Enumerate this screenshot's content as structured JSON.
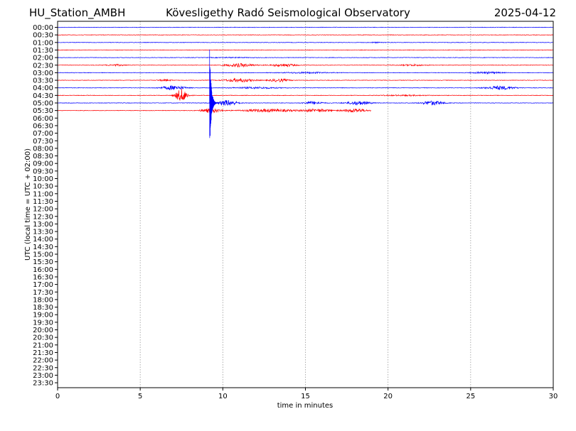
{
  "header": {
    "station": "HU_Station_AMBH",
    "observatory": "Kövesligethy Radó Seismological Observatory",
    "date": "2025-04-12"
  },
  "chart_data": {
    "type": "line",
    "title": "Kövesligethy Radó Seismological Observatory",
    "xlabel": "time in minutes",
    "ylabel": "UTC (local time = UTC + 02:00)",
    "xlim": [
      0,
      30
    ],
    "xticks": [
      "0",
      "5",
      "10",
      "15",
      "20",
      "25",
      "30"
    ],
    "yticks": [
      "00:00",
      "00:30",
      "01:00",
      "01:30",
      "02:00",
      "02:30",
      "03:00",
      "03:30",
      "04:00",
      "04:30",
      "05:00",
      "05:30",
      "06:00",
      "06:30",
      "07:00",
      "07:30",
      "08:00",
      "08:30",
      "09:00",
      "09:30",
      "10:00",
      "10:30",
      "11:00",
      "11:30",
      "12:00",
      "12:30",
      "13:00",
      "13:30",
      "14:00",
      "14:30",
      "15:00",
      "15:30",
      "16:00",
      "16:30",
      "17:00",
      "17:30",
      "18:00",
      "18:30",
      "19:00",
      "19:30",
      "20:00",
      "20:30",
      "21:00",
      "21:30",
      "22:00",
      "22:30",
      "23:00",
      "23:30"
    ],
    "grid": "vertical dotted",
    "colors": {
      "even_rows": "#0000ff",
      "odd_rows": "#ff0000"
    },
    "traces": [
      {
        "row": 0,
        "end": 30,
        "bursts": []
      },
      {
        "row": 1,
        "end": 30,
        "bursts": []
      },
      {
        "row": 2,
        "end": 30,
        "bursts": [
          [
            19.2,
            0.4,
            0.6
          ]
        ]
      },
      {
        "row": 3,
        "end": 30,
        "bursts": []
      },
      {
        "row": 4,
        "end": 30,
        "bursts": [
          [
            10.5,
            1.5,
            0.4
          ]
        ]
      },
      {
        "row": 5,
        "end": 30,
        "bursts": [
          [
            3.5,
            0.8,
            1
          ],
          [
            11,
            1.2,
            2.4
          ],
          [
            13.7,
            1,
            2
          ],
          [
            21.5,
            1,
            1
          ]
        ]
      },
      {
        "row": 6,
        "end": 30,
        "bursts": [
          [
            15,
            2,
            0.8
          ],
          [
            26,
            1.2,
            1.2
          ]
        ]
      },
      {
        "row": 7,
        "end": 30,
        "bursts": [
          [
            6.5,
            0.6,
            1
          ],
          [
            11,
            1.2,
            2.4
          ],
          [
            13.4,
            0.8,
            2
          ]
        ]
      },
      {
        "row": 8,
        "end": 30,
        "bursts": [
          [
            7,
            1,
            3
          ],
          [
            12,
            2,
            1
          ],
          [
            26.8,
            1.2,
            2.5
          ]
        ]
      },
      {
        "row": 9,
        "end": 30,
        "bursts": [
          [
            7.5,
            0.5,
            9
          ],
          [
            21,
            2,
            0.6
          ]
        ]
      },
      {
        "row": 10,
        "end": 30,
        "bursts": [
          [
            10.3,
            0.8,
            4
          ],
          [
            15.5,
            0.8,
            2
          ],
          [
            18.2,
            1,
            2.5
          ],
          [
            22.7,
            0.9,
            3
          ]
        ]
      },
      {
        "row": 11,
        "end": 19,
        "bursts": [
          [
            9.3,
            0.8,
            3
          ],
          [
            12.8,
            2.2,
            2
          ],
          [
            15.7,
            1.2,
            2
          ],
          [
            18,
            1,
            2.5
          ]
        ]
      }
    ],
    "events": [
      {
        "row": 10,
        "time": 9.2,
        "amplitude_rows": 7.2
      }
    ]
  }
}
